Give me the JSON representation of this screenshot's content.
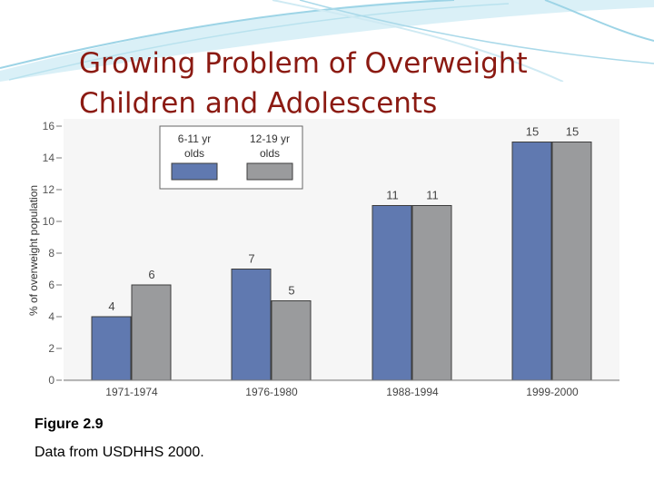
{
  "slide": {
    "title_line1": "Growing Problem of Overweight",
    "title_line2": "Children and Adolescents",
    "figure_label": "Figure 2.9",
    "source": "Data from USDHHS 2000."
  },
  "colors": {
    "series_a": "#6079b0",
    "series_b": "#9a9b9d",
    "title": "#8b1a12",
    "decor": "#9dd4e6"
  },
  "chart_data": {
    "type": "bar",
    "title": "",
    "xlabel": "",
    "ylabel": "% of overweight population",
    "ylim": [
      0,
      16
    ],
    "yticks": [
      0,
      2,
      4,
      6,
      8,
      10,
      12,
      14,
      16
    ],
    "categories": [
      "1971-1974",
      "1976-1980",
      "1988-1994",
      "1999-2000"
    ],
    "series": [
      {
        "name": "6-11 yr olds",
        "values": [
          4,
          7,
          11,
          15
        ]
      },
      {
        "name": "12-19 yr olds",
        "values": [
          6,
          5,
          11,
          15
        ]
      }
    ],
    "legend_position": "top-left",
    "grid": false
  }
}
